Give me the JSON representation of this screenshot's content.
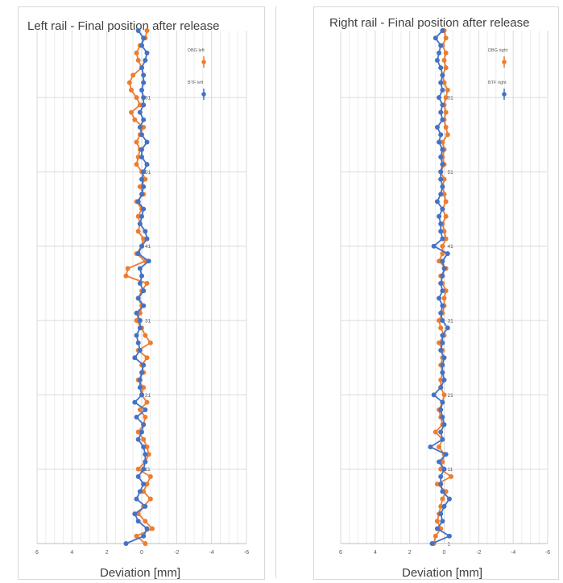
{
  "chart_data": [
    {
      "type": "line",
      "title": "Left rail - Final position after release",
      "xlabel": "Deviation [mm]",
      "ylabel": "",
      "x_axis_reversed": true,
      "xlim": [
        6,
        -6
      ],
      "xticks": [
        "6",
        "4",
        "2",
        "0",
        "-2",
        "-4",
        "-6"
      ],
      "ylim": [
        1,
        70
      ],
      "y_labels": [
        "1",
        "11",
        "21",
        "31",
        "41",
        "51",
        "61"
      ],
      "grid": true,
      "legend_position": "top-right",
      "series": [
        {
          "name": "DBG left",
          "color": "#ed7d31",
          "points": [
            [
              -0.2,
              1
            ],
            [
              0.3,
              2
            ],
            [
              -0.6,
              3
            ],
            [
              -0.2,
              4
            ],
            [
              0.2,
              5
            ],
            [
              -0.1,
              6
            ],
            [
              -0.5,
              7
            ],
            [
              -0.1,
              8
            ],
            [
              -0.3,
              9
            ],
            [
              -0.5,
              10
            ],
            [
              0.2,
              11
            ],
            [
              -0.2,
              12
            ],
            [
              -0.4,
              13
            ],
            [
              -0.3,
              14
            ],
            [
              -0.1,
              15
            ],
            [
              0.2,
              16
            ],
            [
              -0.1,
              17
            ],
            [
              -0.2,
              18
            ],
            [
              0.1,
              19
            ],
            [
              -0.3,
              20
            ],
            [
              0,
              21
            ],
            [
              -0.1,
              22
            ],
            [
              0.2,
              23
            ],
            [
              -0.1,
              24
            ],
            [
              0,
              25
            ],
            [
              -0.3,
              26
            ],
            [
              0.2,
              27
            ],
            [
              -0.5,
              28
            ],
            [
              -0.2,
              29
            ],
            [
              0,
              30
            ],
            [
              0.3,
              31
            ],
            [
              0.1,
              32
            ],
            [
              0,
              33
            ],
            [
              0.2,
              34
            ],
            [
              0,
              35
            ],
            [
              -0.3,
              36
            ],
            [
              0.9,
              37
            ],
            [
              0.8,
              38
            ],
            [
              -0.2,
              39
            ],
            [
              0.3,
              40
            ],
            [
              0,
              41
            ],
            [
              -0.1,
              42
            ],
            [
              0.2,
              43
            ],
            [
              0.1,
              44
            ],
            [
              0.2,
              45
            ],
            [
              0,
              46
            ],
            [
              0.3,
              47
            ],
            [
              -0.1,
              48
            ],
            [
              0.1,
              49
            ],
            [
              -0.2,
              50
            ],
            [
              0,
              51
            ],
            [
              0.3,
              52
            ],
            [
              0.2,
              53
            ],
            [
              0.1,
              54
            ],
            [
              0.3,
              55
            ],
            [
              0.1,
              56
            ],
            [
              -0.1,
              57
            ],
            [
              0.4,
              58
            ],
            [
              0.6,
              59
            ],
            [
              0.1,
              60
            ],
            [
              0.3,
              61
            ],
            [
              0.6,
              62
            ],
            [
              0.7,
              63
            ],
            [
              0.5,
              64
            ],
            [
              0,
              65
            ],
            [
              0.2,
              66
            ],
            [
              0.3,
              67
            ],
            [
              0.1,
              68
            ],
            [
              -0.2,
              69
            ],
            [
              -0.3,
              70
            ]
          ]
        },
        {
          "name": "BTF left",
          "color": "#4472c4",
          "points": [
            [
              0.9,
              1
            ],
            [
              -0.1,
              2
            ],
            [
              -0.3,
              3
            ],
            [
              0.2,
              4
            ],
            [
              0.4,
              5
            ],
            [
              -0.2,
              6
            ],
            [
              0.3,
              7
            ],
            [
              0.1,
              8
            ],
            [
              -0.1,
              9
            ],
            [
              0.2,
              10
            ],
            [
              -0.1,
              11
            ],
            [
              -0.2,
              12
            ],
            [
              -0.2,
              13
            ],
            [
              -0.1,
              14
            ],
            [
              0.2,
              15
            ],
            [
              0,
              16
            ],
            [
              -0.1,
              17
            ],
            [
              0.3,
              18
            ],
            [
              -0.2,
              19
            ],
            [
              0.4,
              20
            ],
            [
              0,
              21
            ],
            [
              0.1,
              22
            ],
            [
              0.1,
              23
            ],
            [
              0,
              24
            ],
            [
              -0.1,
              25
            ],
            [
              0.4,
              26
            ],
            [
              0.1,
              27
            ],
            [
              0.2,
              28
            ],
            [
              0.3,
              29
            ],
            [
              0.1,
              30
            ],
            [
              0.1,
              31
            ],
            [
              0.3,
              32
            ],
            [
              -0.1,
              33
            ],
            [
              0.2,
              34
            ],
            [
              -0.1,
              35
            ],
            [
              0.1,
              36
            ],
            [
              0,
              37
            ],
            [
              0.1,
              38
            ],
            [
              -0.4,
              39
            ],
            [
              0.2,
              40
            ],
            [
              0,
              41
            ],
            [
              -0.3,
              42
            ],
            [
              -0.2,
              43
            ],
            [
              0.1,
              44
            ],
            [
              0,
              45
            ],
            [
              -0.1,
              46
            ],
            [
              0.2,
              47
            ],
            [
              0,
              48
            ],
            [
              -0.1,
              49
            ],
            [
              0,
              50
            ],
            [
              -0.1,
              51
            ],
            [
              -0.3,
              52
            ],
            [
              0,
              53
            ],
            [
              0,
              54
            ],
            [
              -0.3,
              55
            ],
            [
              0,
              56
            ],
            [
              0.1,
              57
            ],
            [
              -0.1,
              58
            ],
            [
              0.1,
              59
            ],
            [
              -0.1,
              60
            ],
            [
              -0.1,
              61
            ],
            [
              0,
              62
            ],
            [
              -0.1,
              63
            ],
            [
              -0.1,
              64
            ],
            [
              0,
              65
            ],
            [
              -0.2,
              66
            ],
            [
              -0.3,
              67
            ],
            [
              0,
              68
            ],
            [
              -0.1,
              69
            ],
            [
              0.2,
              70
            ]
          ]
        }
      ]
    },
    {
      "type": "line",
      "title": "Right rail - Final position after release",
      "xlabel": "Deviation [mm]",
      "ylabel": "",
      "x_axis_reversed": true,
      "xlim": [
        6,
        -6
      ],
      "xticks": [
        "6",
        "4",
        "2",
        "0",
        "-2",
        "-4",
        "-6"
      ],
      "ylim": [
        1,
        70
      ],
      "y_labels": [
        "1",
        "11",
        "21",
        "31",
        "41",
        "51",
        "61"
      ],
      "grid": true,
      "legend_position": "top-right",
      "series": [
        {
          "name": "DBG right",
          "color": "#ed7d31",
          "points": [
            [
              0.6,
              1
            ],
            [
              0.5,
              2
            ],
            [
              0.2,
              3
            ],
            [
              0.4,
              4
            ],
            [
              0.3,
              5
            ],
            [
              0.2,
              6
            ],
            [
              0.1,
              7
            ],
            [
              -0.1,
              8
            ],
            [
              0.4,
              9
            ],
            [
              -0.4,
              10
            ],
            [
              0.2,
              11
            ],
            [
              0.1,
              12
            ],
            [
              0,
              13
            ],
            [
              0.3,
              14
            ],
            [
              0.1,
              15
            ],
            [
              0.5,
              16
            ],
            [
              0.1,
              17
            ],
            [
              0.2,
              18
            ],
            [
              0.3,
              19
            ],
            [
              0.1,
              20
            ],
            [
              0,
              21
            ],
            [
              0.2,
              22
            ],
            [
              0.2,
              23
            ],
            [
              0.1,
              24
            ],
            [
              0.2,
              25
            ],
            [
              0.1,
              26
            ],
            [
              0.1,
              27
            ],
            [
              0.3,
              28
            ],
            [
              0,
              29
            ],
            [
              0.2,
              30
            ],
            [
              0.3,
              31
            ],
            [
              0.1,
              32
            ],
            [
              0,
              33
            ],
            [
              0,
              34
            ],
            [
              -0.1,
              35
            ],
            [
              0.1,
              36
            ],
            [
              0.2,
              37
            ],
            [
              -0.1,
              38
            ],
            [
              0.3,
              39
            ],
            [
              0.1,
              40
            ],
            [
              0.1,
              41
            ],
            [
              -0.1,
              42
            ],
            [
              0,
              43
            ],
            [
              0.1,
              44
            ],
            [
              -0.1,
              45
            ],
            [
              0.1,
              46
            ],
            [
              -0.1,
              47
            ],
            [
              0,
              48
            ],
            [
              0.1,
              49
            ],
            [
              0,
              50
            ],
            [
              0.2,
              51
            ],
            [
              0,
              52
            ],
            [
              0.1,
              53
            ],
            [
              0,
              54
            ],
            [
              0.1,
              55
            ],
            [
              -0.2,
              56
            ],
            [
              -0.1,
              57
            ],
            [
              0,
              58
            ],
            [
              -0.1,
              59
            ],
            [
              0,
              60
            ],
            [
              -0.1,
              61
            ],
            [
              -0.2,
              62
            ],
            [
              0,
              63
            ],
            [
              0.1,
              64
            ],
            [
              -0.1,
              65
            ],
            [
              0,
              66
            ],
            [
              -0.1,
              67
            ],
            [
              0.1,
              68
            ],
            [
              -0.1,
              69
            ],
            [
              0,
              70
            ]
          ]
        },
        {
          "name": "BTF right",
          "color": "#4472c4",
          "points": [
            [
              0.7,
              1
            ],
            [
              -0.3,
              2
            ],
            [
              0.4,
              3
            ],
            [
              0.1,
              4
            ],
            [
              0.2,
              5
            ],
            [
              0,
              6
            ],
            [
              -0.3,
              7
            ],
            [
              0.1,
              8
            ],
            [
              0.2,
              9
            ],
            [
              0.2,
              10
            ],
            [
              0,
              11
            ],
            [
              0.3,
              12
            ],
            [
              -0.1,
              13
            ],
            [
              0.8,
              14
            ],
            [
              0.1,
              15
            ],
            [
              0.2,
              16
            ],
            [
              0,
              17
            ],
            [
              0.1,
              18
            ],
            [
              0.2,
              19
            ],
            [
              0.1,
              20
            ],
            [
              0.6,
              21
            ],
            [
              0.2,
              22
            ],
            [
              0,
              23
            ],
            [
              0.1,
              24
            ],
            [
              0.1,
              25
            ],
            [
              0,
              26
            ],
            [
              0.2,
              27
            ],
            [
              0.1,
              28
            ],
            [
              0.1,
              29
            ],
            [
              -0.2,
              30
            ],
            [
              0.1,
              31
            ],
            [
              0.2,
              32
            ],
            [
              0.1,
              33
            ],
            [
              0.3,
              34
            ],
            [
              0.1,
              35
            ],
            [
              0.2,
              36
            ],
            [
              0.1,
              37
            ],
            [
              0,
              38
            ],
            [
              0.1,
              39
            ],
            [
              -0.2,
              40
            ],
            [
              0.6,
              41
            ],
            [
              0.1,
              42
            ],
            [
              0.2,
              43
            ],
            [
              0.2,
              44
            ],
            [
              0.3,
              45
            ],
            [
              0.1,
              46
            ],
            [
              0.4,
              47
            ],
            [
              0.2,
              48
            ],
            [
              0.1,
              49
            ],
            [
              0.2,
              50
            ],
            [
              0.2,
              51
            ],
            [
              0.1,
              52
            ],
            [
              0.2,
              53
            ],
            [
              0.1,
              54
            ],
            [
              0.3,
              55
            ],
            [
              0.2,
              56
            ],
            [
              0.4,
              57
            ],
            [
              0.1,
              58
            ],
            [
              0.2,
              59
            ],
            [
              0.1,
              60
            ],
            [
              0.3,
              61
            ],
            [
              0.1,
              62
            ],
            [
              0.2,
              63
            ],
            [
              0.1,
              64
            ],
            [
              0.2,
              65
            ],
            [
              0.4,
              66
            ],
            [
              0.3,
              67
            ],
            [
              0.2,
              68
            ],
            [
              0.5,
              69
            ],
            [
              0.1,
              70
            ]
          ]
        }
      ]
    }
  ]
}
